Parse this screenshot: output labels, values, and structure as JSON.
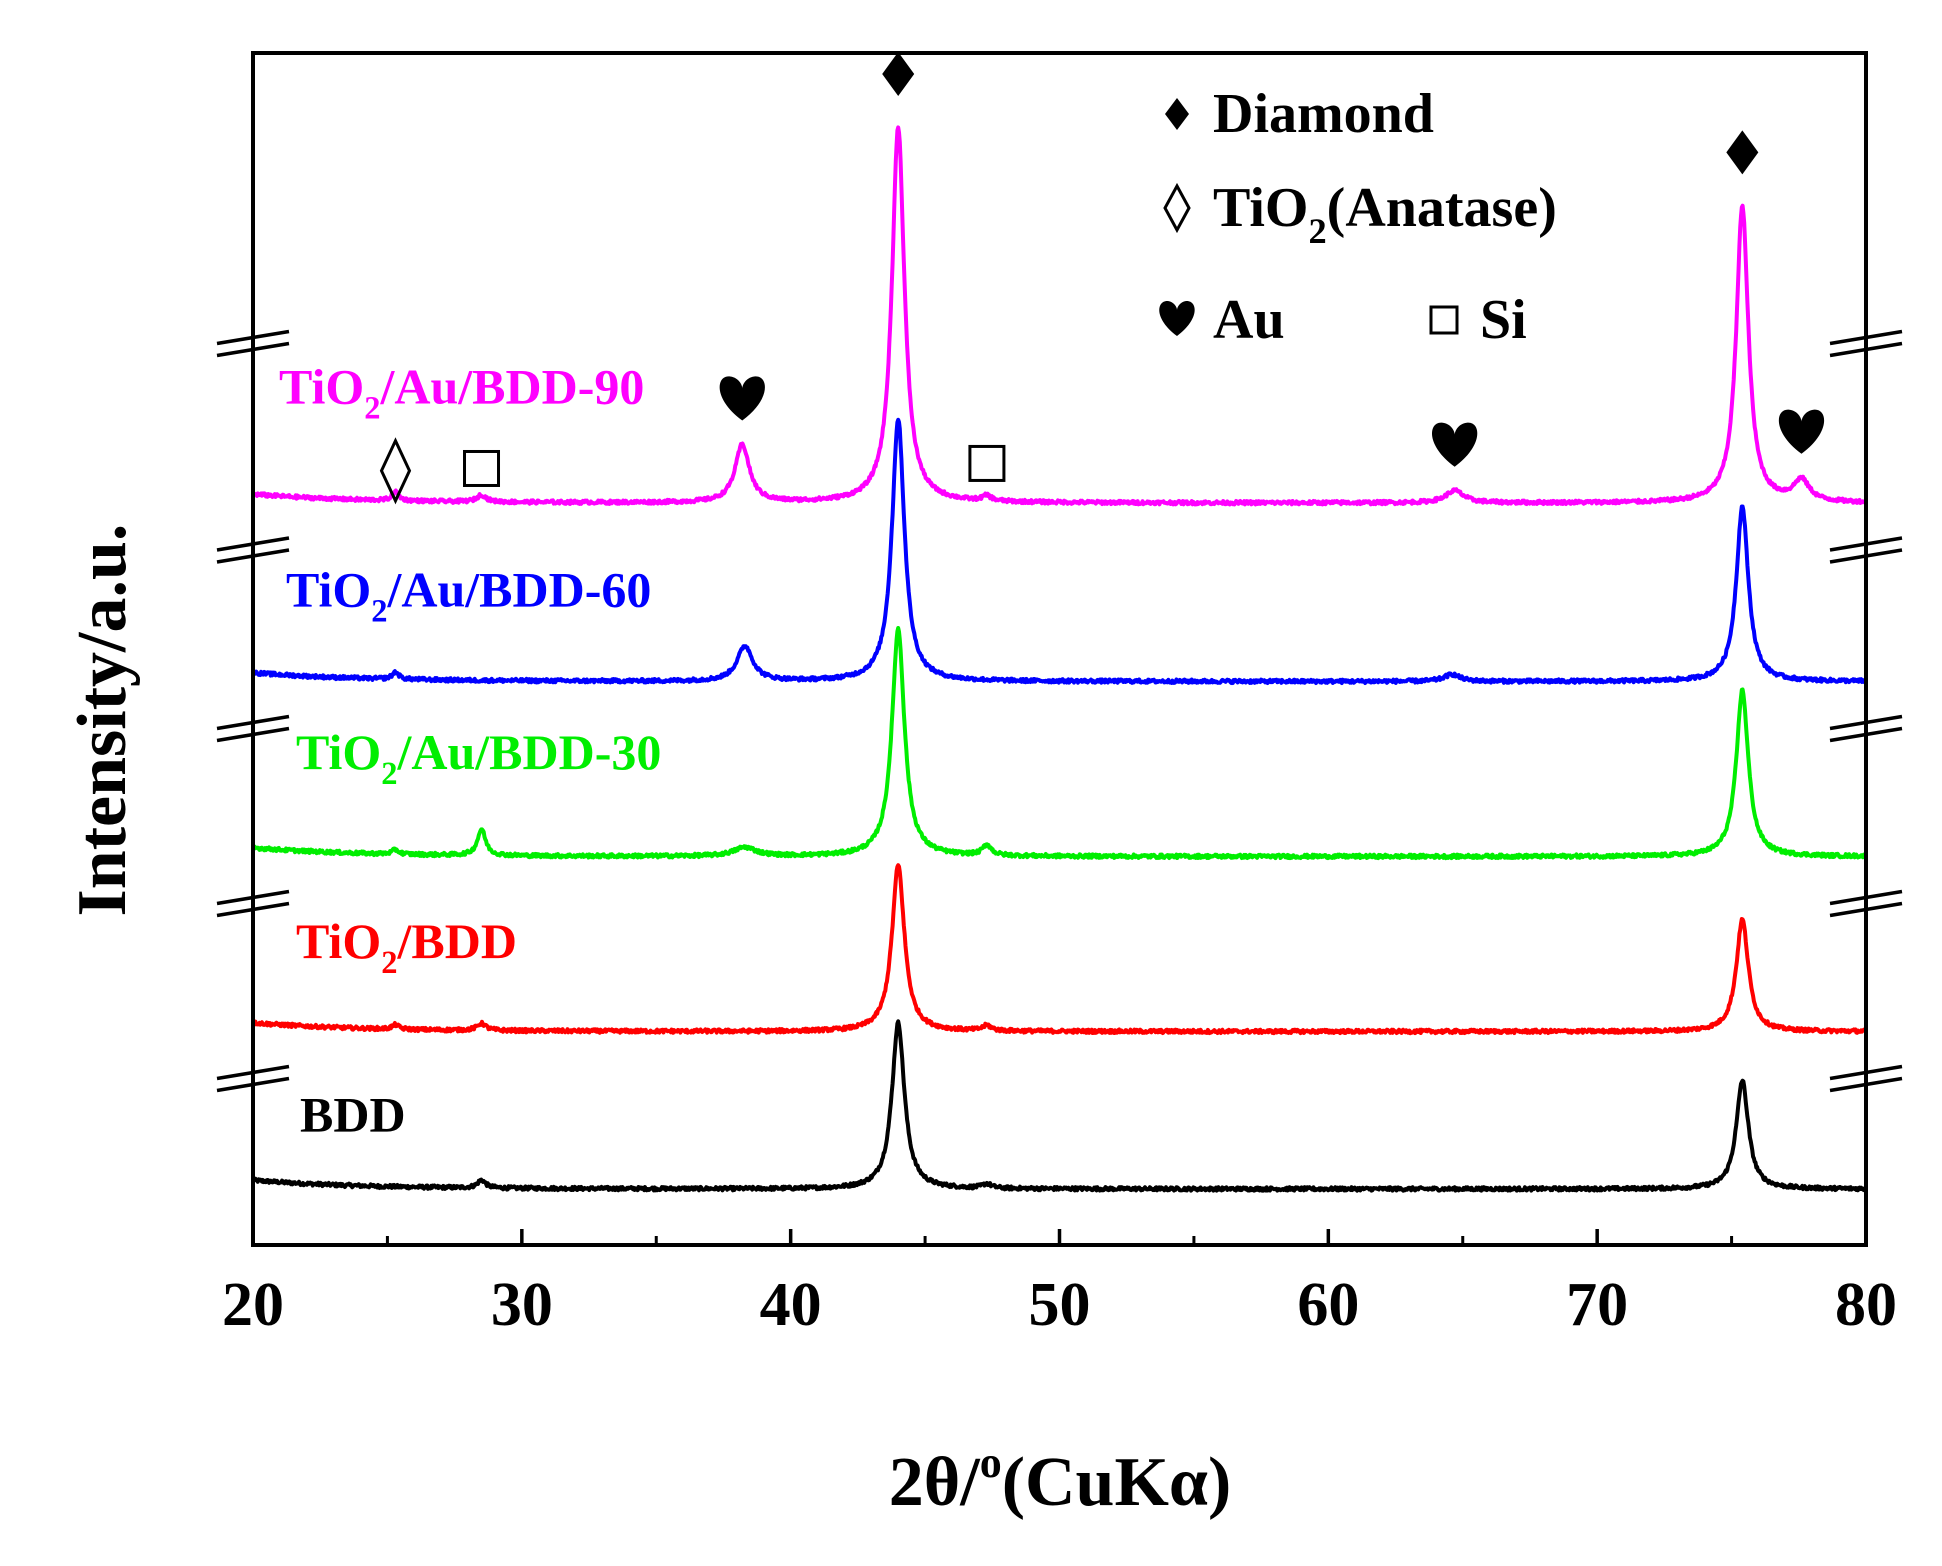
{
  "chart_data": {
    "type": "line",
    "title": "",
    "xlabel": "2θ/°(CuKα)",
    "xlabel_parts": {
      "main": "2θ/",
      "sup": "o",
      "rest": "(CuKα)"
    },
    "ylabel": "Intensity/a.u.",
    "xlim": [
      20,
      80
    ],
    "xticks": [
      20,
      30,
      40,
      50,
      60,
      70,
      80
    ],
    "xtick_labels": [
      "20",
      "30",
      "40",
      "50",
      "60",
      "70",
      "80"
    ],
    "y_ticks_shown": false,
    "grid": false,
    "axis_break_marks": true,
    "series": [
      {
        "name": "BDD",
        "label_parts": [
          {
            "t": "BDD"
          }
        ],
        "color": "#000000",
        "label_color": "#000000",
        "baseline": 0.12,
        "noise": 0.01,
        "peaks": [
          [
            28.5,
            0.045,
            0.18
          ],
          [
            44.0,
            0.95,
            0.28
          ],
          [
            47.3,
            0.025,
            0.2
          ],
          [
            75.4,
            0.62,
            0.27
          ]
        ]
      },
      {
        "name": "TiO2/BDD",
        "label_parts": [
          {
            "t": "TiO"
          },
          {
            "t": "2",
            "sub": true
          },
          {
            "t": "/BDD"
          }
        ],
        "color": "#ff0000",
        "label_color": "#ff0000",
        "baseline": 1.02,
        "noise": 0.01,
        "peaks": [
          [
            25.3,
            0.025,
            0.15
          ],
          [
            28.5,
            0.04,
            0.2
          ],
          [
            44.0,
            0.95,
            0.28
          ],
          [
            47.3,
            0.03,
            0.2
          ],
          [
            75.4,
            0.64,
            0.27
          ]
        ]
      },
      {
        "name": "TiO2/Au/BDD-30",
        "label_parts": [
          {
            "t": "TiO"
          },
          {
            "t": "2",
            "sub": true
          },
          {
            "t": "/Au/BDD-30"
          }
        ],
        "color": "#00ee00",
        "label_color": "#00ee00",
        "baseline": 2.02,
        "noise": 0.01,
        "peaks": [
          [
            25.3,
            0.025,
            0.15
          ],
          [
            28.5,
            0.15,
            0.18
          ],
          [
            38.3,
            0.05,
            0.5
          ],
          [
            44.0,
            1.3,
            0.28
          ],
          [
            47.3,
            0.06,
            0.2
          ],
          [
            75.4,
            0.95,
            0.27
          ]
        ]
      },
      {
        "name": "TiO2/Au/BDD-60",
        "label_parts": [
          {
            "t": "TiO"
          },
          {
            "t": "2",
            "sub": true
          },
          {
            "t": "/Au/BDD-60"
          }
        ],
        "color": "#0000ff",
        "label_color": "#0000ff",
        "baseline": 3.02,
        "noise": 0.01,
        "peaks": [
          [
            25.3,
            0.04,
            0.15
          ],
          [
            38.3,
            0.2,
            0.35
          ],
          [
            44.0,
            1.5,
            0.28
          ],
          [
            64.6,
            0.04,
            0.35
          ],
          [
            75.4,
            1.0,
            0.27
          ]
        ]
      },
      {
        "name": "TiO2/Au/BDD-90",
        "label_parts": [
          {
            "t": "TiO"
          },
          {
            "t": "2",
            "sub": true
          },
          {
            "t": "/Au/BDD-90"
          }
        ],
        "color": "#ff00ff",
        "label_color": "#ff00ff",
        "baseline": 4.04,
        "noise": 0.01,
        "peaks": [
          [
            25.3,
            0.05,
            0.15
          ],
          [
            28.5,
            0.04,
            0.2
          ],
          [
            38.2,
            0.33,
            0.32
          ],
          [
            44.0,
            2.15,
            0.28
          ],
          [
            47.3,
            0.03,
            0.2
          ],
          [
            64.7,
            0.07,
            0.4
          ],
          [
            75.4,
            1.7,
            0.27
          ],
          [
            77.6,
            0.12,
            0.35
          ]
        ]
      }
    ],
    "peak_markers": [
      {
        "x": 44.0,
        "symbol": "diamond-filled",
        "series": "TiO2/Au/BDD-90"
      },
      {
        "x": 75.4,
        "symbol": "diamond-filled",
        "series": "TiO2/Au/BDD-90"
      },
      {
        "x": 25.3,
        "symbol": "diamond-open",
        "series": "TiO2/Au/BDD-90"
      },
      {
        "x": 28.5,
        "symbol": "square-open",
        "series": "TiO2/Au/BDD-90"
      },
      {
        "x": 47.3,
        "symbol": "square-open",
        "series": "TiO2/Au/BDD-90"
      },
      {
        "x": 38.2,
        "symbol": "heart",
        "series": "TiO2/Au/BDD-90"
      },
      {
        "x": 64.7,
        "symbol": "heart",
        "series": "TiO2/Au/BDD-90"
      },
      {
        "x": 77.6,
        "symbol": "heart",
        "series": "TiO2/Au/BDD-90"
      }
    ],
    "legend": {
      "position": "top-right",
      "items": [
        {
          "symbol": "diamond-filled",
          "glyph": "♦",
          "parts": [
            {
              "t": "Diamond"
            }
          ]
        },
        {
          "symbol": "diamond-open",
          "glyph": "◊",
          "parts": [
            {
              "t": "TiO"
            },
            {
              "t": "2",
              "sub": true
            },
            {
              "t": "(Anatase)"
            }
          ]
        },
        {
          "symbol": "heart",
          "glyph": "♥",
          "parts": [
            {
              "t": "Au"
            }
          ]
        },
        {
          "symbol": "square-open",
          "glyph": "□",
          "parts": [
            {
              "t": "Si"
            }
          ]
        }
      ]
    },
    "symbol_glyphs": {
      "diamond-filled": "◆",
      "diamond-open": "◇",
      "heart": "♥",
      "square-open": "□"
    }
  }
}
